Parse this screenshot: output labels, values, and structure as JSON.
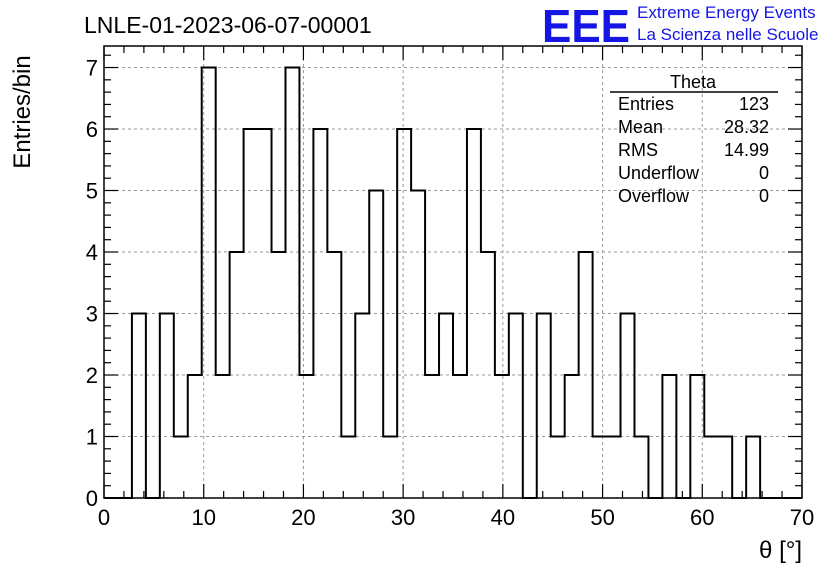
{
  "chart_data": {
    "type": "bar",
    "title": "LNLE-01-2023-06-07-00001",
    "xlabel": "θ [°]",
    "ylabel": "Entries/bin",
    "xlim": [
      0,
      70
    ],
    "ylim": [
      0,
      7.35
    ],
    "bin_width": 1.4,
    "x_ticks": [
      0,
      10,
      20,
      30,
      40,
      50,
      60,
      70
    ],
    "y_ticks": [
      0,
      1,
      2,
      3,
      4,
      5,
      6,
      7
    ],
    "grid": true,
    "values": [
      0,
      0,
      3,
      0,
      3,
      1,
      2,
      7,
      2,
      4,
      6,
      6,
      4,
      7,
      2,
      6,
      4,
      1,
      3,
      5,
      1,
      6,
      5,
      2,
      3,
      2,
      6,
      4,
      2,
      3,
      0,
      3,
      1,
      2,
      4,
      1,
      1,
      3,
      1,
      0,
      2,
      0,
      2,
      1,
      1,
      0,
      1,
      0,
      0,
      0
    ],
    "stats": {
      "name": "Theta",
      "rows": [
        {
          "label": "Entries",
          "value": "123"
        },
        {
          "label": "Mean",
          "value": "28.32"
        },
        {
          "label": "RMS",
          "value": "14.99"
        },
        {
          "label": "Underflow",
          "value": "0"
        },
        {
          "label": "Overflow",
          "value": "0"
        }
      ]
    },
    "colors": {
      "histogram": "#000000",
      "grid": "#9a9a9a",
      "brand": "#1515e6"
    }
  },
  "branding": {
    "logo_text": "EEE",
    "line1": "Extreme Energy Events",
    "line2": "La Scienza nelle Scuole"
  }
}
